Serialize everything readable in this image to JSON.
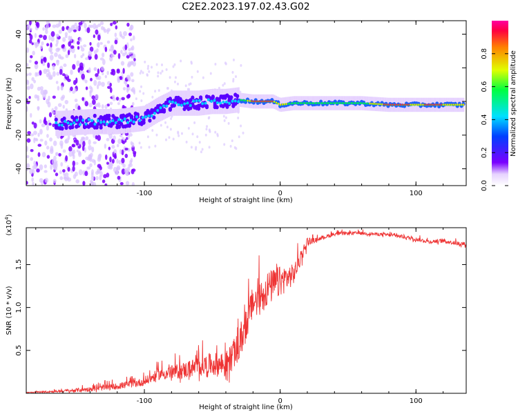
{
  "title": "C2E2.2023.197.02.43.G02",
  "chart_data": [
    {
      "type": "heatmap",
      "name": "spectrogram",
      "xlabel": "Height of straight line (km)",
      "ylabel": "Frequency (Hz)",
      "xlim": [
        -187,
        137
      ],
      "ylim": [
        -50,
        48
      ],
      "xticks": [
        -100,
        0,
        100
      ],
      "xtick_labels": [
        "-100",
        "0",
        "100"
      ],
      "yticks": [
        -40,
        -20,
        0,
        20,
        40
      ],
      "ytick_labels": [
        "-40",
        "-20",
        "0",
        "20",
        "40"
      ],
      "ridge": {
        "x": [
          -160,
          -140,
          -120,
          -100,
          -90,
          -80,
          -70,
          -60,
          -50,
          -40,
          -30,
          -20,
          -10,
          -5,
          0,
          10,
          20,
          40,
          60,
          80,
          100,
          120,
          135
        ],
        "y": [
          -13,
          -12,
          -12,
          -10,
          -5,
          -1,
          -1,
          -1,
          0,
          0,
          1,
          0,
          0,
          0,
          -2,
          -1,
          -1,
          -1,
          -1,
          -2,
          -2,
          -2,
          -2
        ]
      },
      "colorbar": {
        "label": "Normalized spectral amplitude",
        "range": [
          0,
          1
        ],
        "ticks": [
          0,
          0.2,
          0.4,
          0.6,
          0.8
        ],
        "tick_labels": [
          "0.0",
          "0.2",
          "0.4",
          "0.6",
          "0.8"
        ],
        "colormap": "rainbow"
      }
    },
    {
      "type": "line",
      "name": "snr",
      "xlabel": "Height of straight line (km)",
      "ylabel": "SNR (10 * v/v)",
      "y_multiplier_label": "(x10",
      "y_multiplier_exp": "4",
      "y_multiplier_close": ")",
      "xlim": [
        -187,
        137
      ],
      "ylim": [
        0,
        1.93
      ],
      "xticks": [
        -100,
        0,
        100
      ],
      "xtick_labels": [
        "-100",
        "0",
        "100"
      ],
      "yticks": [
        0.5,
        1.0,
        1.5
      ],
      "ytick_labels": [
        "0.5",
        "1.0",
        "1.5"
      ],
      "color": "#ee3333",
      "envelope": {
        "x": [
          -187,
          -160,
          -140,
          -120,
          -100,
          -90,
          -80,
          -70,
          -60,
          -50,
          -40,
          -30,
          -25,
          -20,
          -15,
          -10,
          -5,
          0,
          10,
          20,
          30,
          40,
          50,
          60,
          70,
          80,
          90,
          100,
          110,
          120,
          130,
          137
        ],
        "y": [
          0.01,
          0.02,
          0.04,
          0.07,
          0.12,
          0.2,
          0.22,
          0.24,
          0.28,
          0.3,
          0.28,
          0.5,
          0.75,
          1.0,
          1.05,
          1.15,
          1.2,
          1.25,
          1.35,
          1.75,
          1.8,
          1.85,
          1.86,
          1.86,
          1.85,
          1.84,
          1.82,
          1.79,
          1.76,
          1.77,
          1.74,
          1.73
        ]
      },
      "noise": {
        "x": [
          -187,
          -100,
          -50,
          -30,
          -10,
          0,
          15,
          25,
          60,
          137
        ],
        "amp": [
          0.005,
          0.08,
          0.22,
          0.3,
          0.35,
          0.3,
          0.15,
          0.04,
          0.03,
          0.04
        ]
      }
    }
  ]
}
